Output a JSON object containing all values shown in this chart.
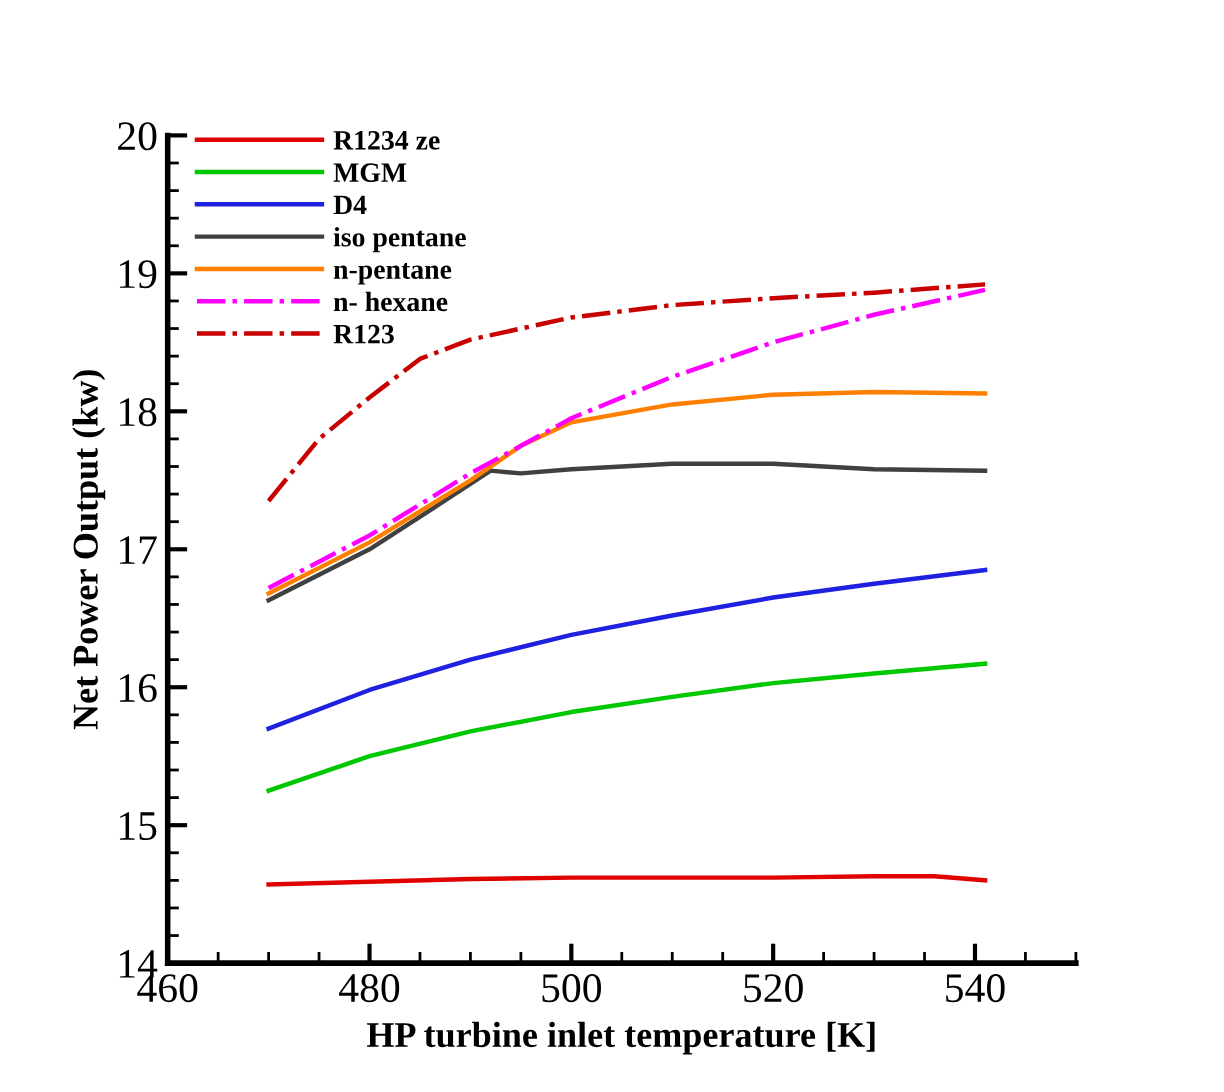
{
  "chart_data": {
    "type": "line",
    "xlabel": "HP turbine inlet temperature [K]",
    "ylabel": "Net Power Output (kw)",
    "xlim": [
      460,
      550
    ],
    "xticks": [
      460,
      480,
      500,
      520,
      540
    ],
    "ylim": [
      14,
      20
    ],
    "yticks": [
      14,
      15,
      16,
      17,
      18,
      19,
      20
    ],
    "grid": false,
    "legend": "top left",
    "marker": "none",
    "line_style": "solid",
    "series": [
      {
        "name": "R1234 ze",
        "color": "#e00000",
        "x": [
          470,
          480,
          490,
          500,
          510,
          520,
          530,
          536,
          541
        ],
        "values": [
          14.57,
          14.59,
          14.61,
          14.62,
          14.62,
          14.62,
          14.63,
          14.63,
          14.6
        ]
      },
      {
        "name": "MGM",
        "color": "#00c800",
        "x": [
          470,
          480,
          490,
          500,
          510,
          520,
          530,
          541
        ],
        "values": [
          15.25,
          15.5,
          15.68,
          15.82,
          15.93,
          16.03,
          16.1,
          16.17
        ]
      },
      {
        "name": "D4",
        "color": "#2020e0",
        "x": [
          470,
          480,
          490,
          500,
          510,
          520,
          530,
          541
        ],
        "values": [
          15.7,
          15.98,
          16.2,
          16.38,
          16.52,
          16.65,
          16.75,
          16.85
        ]
      },
      {
        "name": "iso pentane",
        "color": "#404040",
        "x": [
          470,
          480,
          487,
          492,
          495,
          500,
          510,
          520,
          530,
          541
        ],
        "values": [
          16.63,
          17.0,
          17.33,
          17.57,
          17.55,
          17.58,
          17.62,
          17.62,
          17.58,
          17.57
        ]
      },
      {
        "name": "n-pentane",
        "color": "#ff8000",
        "x": [
          470,
          480,
          490,
          495,
          500,
          510,
          520,
          530,
          541
        ],
        "values": [
          16.68,
          17.05,
          17.5,
          17.75,
          17.92,
          18.05,
          18.12,
          18.14,
          18.13
        ]
      },
      {
        "name": "n- hexane",
        "color": "#ff00ff",
        "line_style": "dashdot",
        "x": [
          470,
          480,
          490,
          500,
          510,
          520,
          530,
          541
        ],
        "values": [
          16.72,
          17.1,
          17.55,
          17.95,
          18.25,
          18.5,
          18.7,
          18.88
        ]
      },
      {
        "name": "R123",
        "color": "#c80000",
        "line_style": "dashdot",
        "x": [
          470,
          475,
          480,
          485,
          490,
          500,
          510,
          520,
          530,
          541
        ],
        "values": [
          17.35,
          17.8,
          18.1,
          18.38,
          18.52,
          18.68,
          18.77,
          18.82,
          18.86,
          18.92
        ]
      }
    ]
  }
}
